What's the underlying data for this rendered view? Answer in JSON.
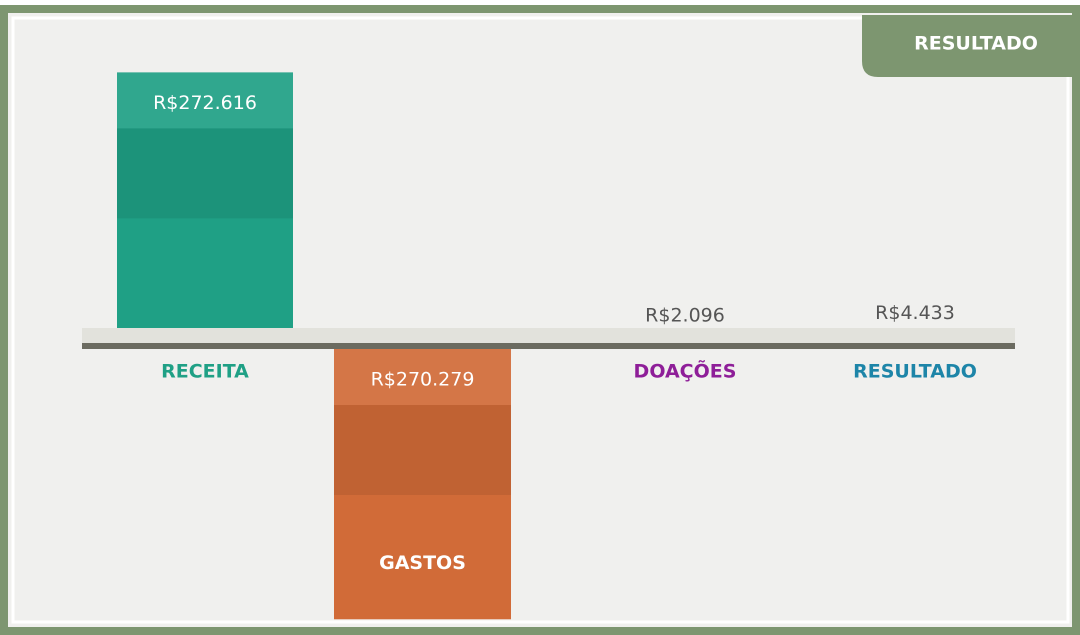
{
  "chart_data": {
    "type": "bar",
    "title": "RESULTADO",
    "categories": [
      "RECEITA",
      "GASTOS",
      "DOAÇÕES",
      "RESULTADO"
    ],
    "values": [
      272616,
      -270279,
      2096,
      4433
    ],
    "value_labels": [
      "R$272.616",
      "R$270.279",
      "R$2.096",
      "R$4.433"
    ],
    "colors": [
      "#1fa085",
      "#d16b38",
      "#8e1e98",
      "#1d85a8"
    ],
    "ylim": [
      -280000,
      280000
    ]
  }
}
